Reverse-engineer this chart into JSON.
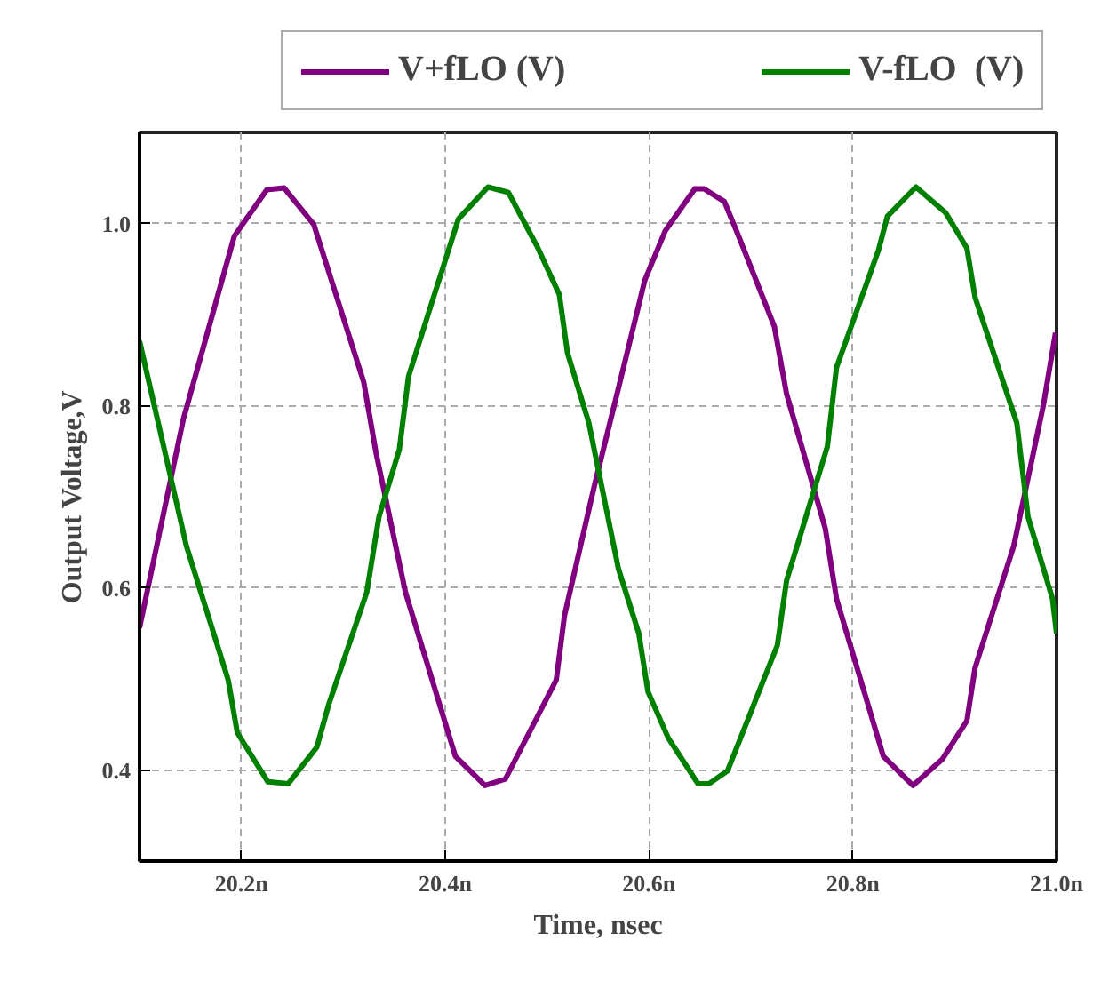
{
  "chart_data": {
    "type": "line",
    "xlabel": "Time, nsec",
    "ylabel": "Output Voltage,V",
    "xlim": [
      20.1,
      21.0
    ],
    "ylim": [
      0.3,
      1.1
    ],
    "xticks": [
      {
        "value": 20.2,
        "label": "20.2n"
      },
      {
        "value": 20.4,
        "label": "20.4n"
      },
      {
        "value": 20.6,
        "label": "20.6n"
      },
      {
        "value": 20.8,
        "label": "20.8n"
      },
      {
        "value": 21.0,
        "label": "21.0n"
      }
    ],
    "yticks": [
      0.4,
      0.6,
      0.8,
      {
        "value": 1.0,
        "label": "1.0"
      }
    ],
    "grid": true,
    "legend": "top",
    "line_style": "solid",
    "marker": "none",
    "series": [
      {
        "name": "V+fLO (V)",
        "color": "#800080",
        "x": [
          20.1,
          20.143,
          20.193,
          20.225,
          20.242,
          20.271,
          20.32,
          20.332,
          20.361,
          20.41,
          20.439,
          20.459,
          20.509,
          20.517,
          20.546,
          20.57,
          20.596,
          20.616,
          20.645,
          20.654,
          20.674,
          20.688,
          20.723,
          20.735,
          20.773,
          20.784,
          20.83,
          20.859,
          20.888,
          20.912,
          20.92,
          20.958,
          20.987,
          20.999
        ],
        "values": [
          0.556,
          0.785,
          0.986,
          1.037,
          1.039,
          0.999,
          0.826,
          0.749,
          0.595,
          0.415,
          0.383,
          0.39,
          0.499,
          0.569,
          0.71,
          0.819,
          0.938,
          0.992,
          1.038,
          1.038,
          1.024,
          0.986,
          0.887,
          0.813,
          0.665,
          0.588,
          0.415,
          0.383,
          0.412,
          0.454,
          0.512,
          0.646,
          0.8,
          0.88
        ]
      },
      {
        "name": "V-fLO  (V)",
        "color": "#008000",
        "x": [
          20.1,
          20.146,
          20.187,
          20.196,
          20.226,
          20.246,
          20.274,
          20.286,
          20.323,
          20.335,
          20.355,
          20.364,
          20.384,
          20.413,
          20.442,
          20.462,
          20.491,
          20.512,
          20.52,
          20.541,
          20.57,
          20.59,
          20.599,
          20.619,
          20.648,
          20.659,
          20.677,
          20.726,
          20.735,
          20.775,
          20.784,
          20.825,
          20.834,
          20.862,
          20.891,
          20.912,
          20.92,
          20.961,
          20.972,
          20.996,
          21.0
        ],
        "values": [
          0.871,
          0.646,
          0.499,
          0.441,
          0.387,
          0.385,
          0.425,
          0.473,
          0.595,
          0.678,
          0.752,
          0.832,
          0.903,
          1.005,
          1.04,
          1.034,
          0.973,
          0.922,
          0.858,
          0.781,
          0.621,
          0.55,
          0.486,
          0.435,
          0.385,
          0.385,
          0.399,
          0.537,
          0.608,
          0.755,
          0.842,
          0.97,
          1.008,
          1.04,
          1.012,
          0.973,
          0.919,
          0.781,
          0.678,
          0.588,
          0.55
        ]
      }
    ]
  }
}
